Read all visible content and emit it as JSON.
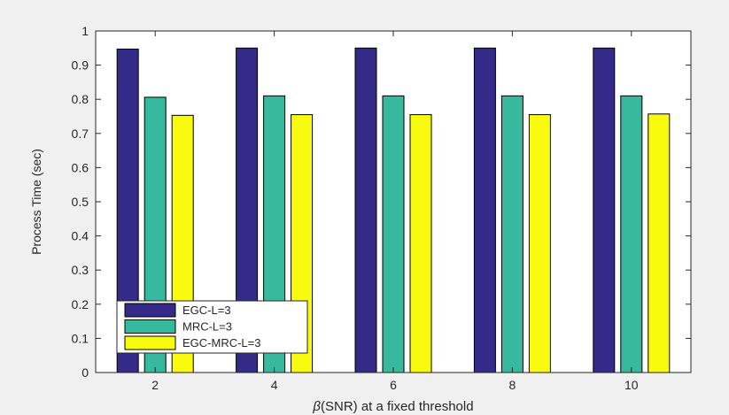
{
  "chart_data": {
    "type": "bar",
    "categories": [
      "2",
      "4",
      "6",
      "8",
      "10"
    ],
    "series": [
      {
        "name": "EGC-L=3",
        "color": "#352a87",
        "values": [
          0.947,
          0.95,
          0.95,
          0.95,
          0.95
        ]
      },
      {
        "name": "MRC-L=3",
        "color": "#38b99e",
        "values": [
          0.806,
          0.81,
          0.81,
          0.81,
          0.81
        ]
      },
      {
        "name": "EGC-MRC-L=3",
        "color": "#f9fb0e",
        "values": [
          0.753,
          0.755,
          0.755,
          0.755,
          0.757
        ]
      }
    ],
    "title": "",
    "xlabel_symbol": "β",
    "xlabel": "(SNR) at a fixed threshold",
    "ylabel": "Process Time (sec)",
    "ylim": [
      0,
      1
    ],
    "yticks": [
      "0",
      "0.1",
      "0.2",
      "0.3",
      "0.4",
      "0.5",
      "0.6",
      "0.7",
      "0.8",
      "0.9",
      "1"
    ],
    "grid": false,
    "legend_position": "bottom-left"
  }
}
